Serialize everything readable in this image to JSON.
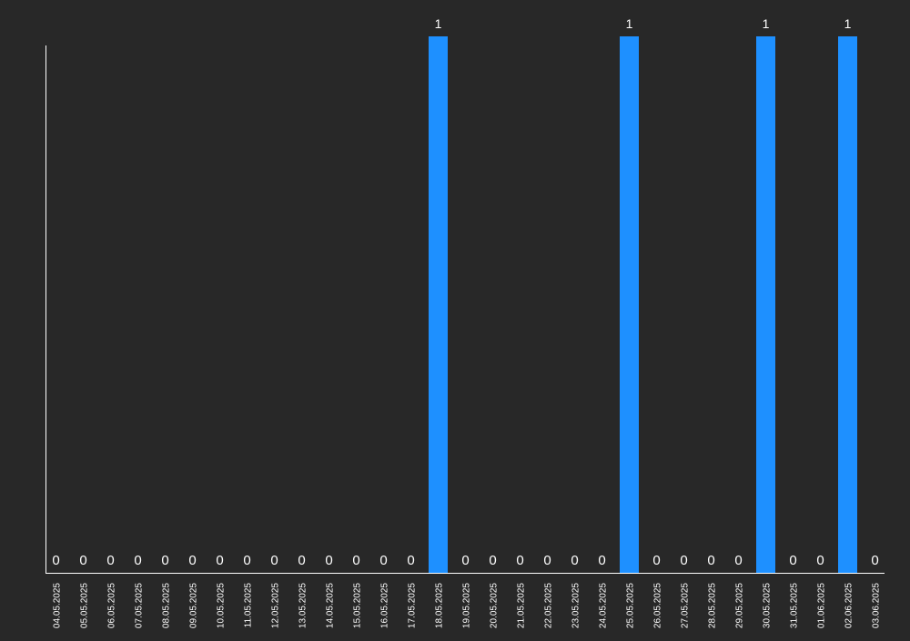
{
  "chart_data": {
    "type": "bar",
    "title": "",
    "xlabel": "",
    "ylabel": "",
    "ylim": [
      0,
      1
    ],
    "grid": false,
    "legend": "none",
    "colors": {
      "background": "#282828",
      "bar": "#1e90ff",
      "axis": "#ffffff",
      "text": "#ffffff"
    },
    "categories": [
      "04.05.2025",
      "05.05.2025",
      "06.05.2025",
      "07.05.2025",
      "08.05.2025",
      "09.05.2025",
      "10.05.2025",
      "11.05.2025",
      "12.05.2025",
      "13.05.2025",
      "14.05.2025",
      "15.05.2025",
      "16.05.2025",
      "17.05.2025",
      "18.05.2025",
      "19.05.2025",
      "20.05.2025",
      "21.05.2025",
      "22.05.2025",
      "23.05.2025",
      "24.05.2025",
      "25.05.2025",
      "26.05.2025",
      "27.05.2025",
      "28.05.2025",
      "29.05.2025",
      "30.05.2025",
      "31.05.2025",
      "01.06.2025",
      "02.06.2025",
      "03.06.2025"
    ],
    "values": [
      0,
      0,
      0,
      0,
      0,
      0,
      0,
      0,
      0,
      0,
      0,
      0,
      0,
      0,
      1,
      0,
      0,
      0,
      0,
      0,
      0,
      1,
      0,
      0,
      0,
      0,
      1,
      0,
      0,
      1,
      0
    ]
  }
}
